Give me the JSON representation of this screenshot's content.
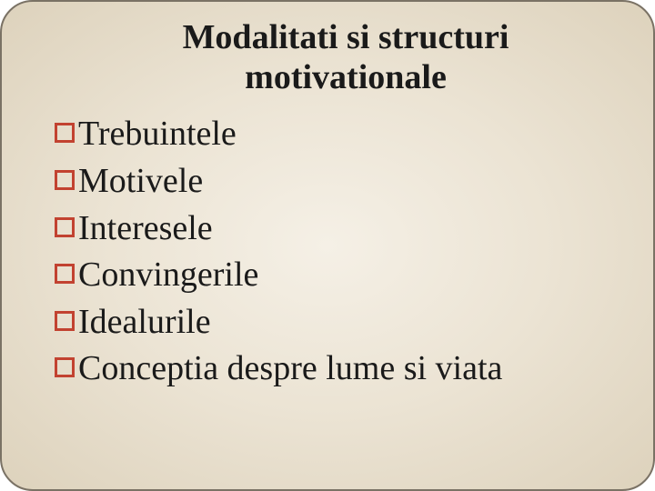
{
  "slide": {
    "title": "Modalitati si structuri motivationale",
    "title_fontsize": 38,
    "title_color": "#1a1a1a",
    "background_gradient": {
      "center": "#f5f0e6",
      "mid": "#ebe3d3",
      "edge": "#ddd2bc"
    },
    "border_color": "#7a7265",
    "border_radius": 36,
    "bullet_color": "#c24230",
    "bullet_size": 22,
    "bullet_border_width": 3,
    "item_fontsize": 38,
    "item_color": "#1a1a1a",
    "items": [
      {
        "label": "Trebuintele"
      },
      {
        "label": "Motivele"
      },
      {
        "label": "Interesele"
      },
      {
        "label": "Convingerile"
      },
      {
        "label": "Idealurile"
      },
      {
        "label": "Conceptia despre lume si viata"
      }
    ]
  }
}
